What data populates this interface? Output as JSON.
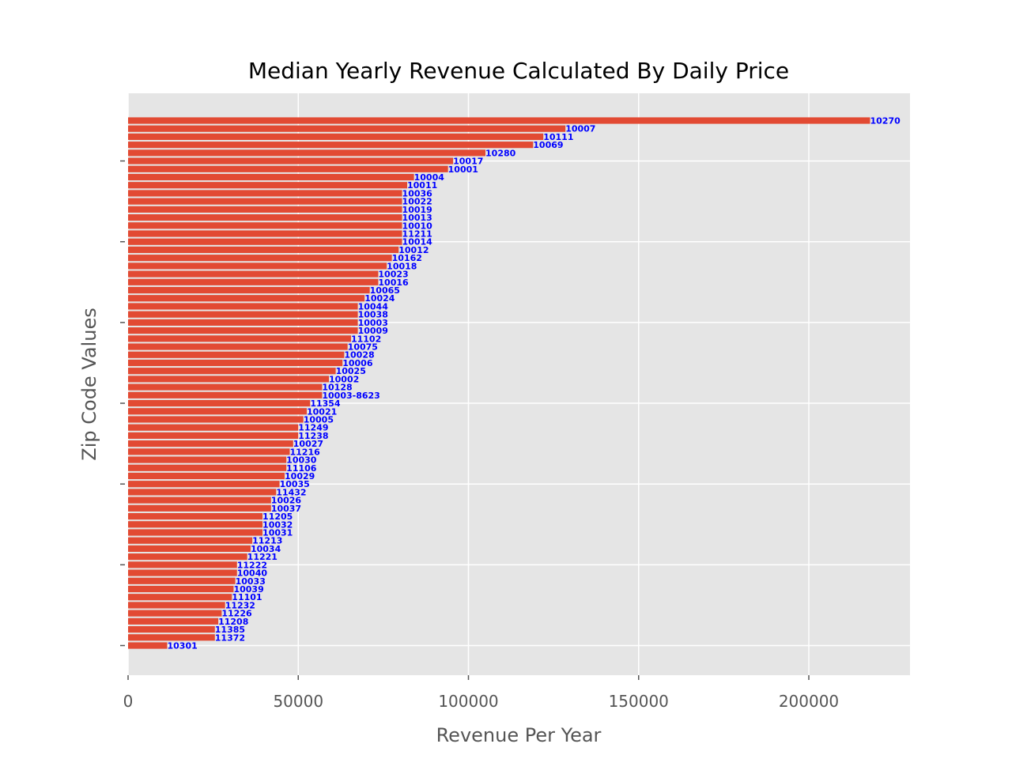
{
  "chart_data": {
    "type": "bar",
    "orientation": "horizontal",
    "title": "Median Yearly Revenue Calculated By Daily Price",
    "xlabel": "Revenue Per Year",
    "ylabel": "Zip Code Values",
    "xlim": [
      0,
      229000
    ],
    "xticks": [
      0,
      50000,
      100000,
      150000,
      200000
    ],
    "xtick_labels": [
      "0",
      "50000",
      "100000",
      "150000",
      "200000"
    ],
    "grid": true,
    "legend": "none",
    "colors": {
      "bar": "#E24A33",
      "label": "#0000FF",
      "plot_bg": "#E5E5E5",
      "grid": "#FFFFFF",
      "tick": "#555555"
    },
    "categories": [
      "10270",
      "10007",
      "10111",
      "10069",
      "10280",
      "10017",
      "10001",
      "10004",
      "10011",
      "10036",
      "10022",
      "10019",
      "10013",
      "10010",
      "11211",
      "10014",
      "10012",
      "10162",
      "10018",
      "10023",
      "10016",
      "10065",
      "10024",
      "10044",
      "10038",
      "10003",
      "10009",
      "11102",
      "10075",
      "10028",
      "10006",
      "10025",
      "10002",
      "10128",
      "10003-8623",
      "11354",
      "10021",
      "10005",
      "11249",
      "11238",
      "10027",
      "11216",
      "10030",
      "11106",
      "10029",
      "10035",
      "11432",
      "10026",
      "10037",
      "11205",
      "10032",
      "10031",
      "11213",
      "10034",
      "11221",
      "11222",
      "10040",
      "10033",
      "10039",
      "11101",
      "11232",
      "11226",
      "11208",
      "11385",
      "11372",
      "10301"
    ],
    "values": [
      218000,
      128500,
      122000,
      119000,
      105000,
      95500,
      94000,
      84000,
      82000,
      80500,
      80500,
      80500,
      80500,
      80500,
      80500,
      80500,
      79500,
      77500,
      76000,
      73500,
      73500,
      71000,
      69500,
      67500,
      67500,
      67500,
      67500,
      65500,
      64500,
      63500,
      63000,
      61000,
      59000,
      57000,
      57000,
      53500,
      52500,
      51500,
      50000,
      50000,
      48500,
      47500,
      46500,
      46500,
      46000,
      44500,
      43500,
      42000,
      42000,
      39500,
      39500,
      39500,
      36500,
      36000,
      35000,
      32000,
      32000,
      31500,
      31000,
      30500,
      28500,
      27500,
      26500,
      25500,
      25500,
      11500
    ]
  }
}
